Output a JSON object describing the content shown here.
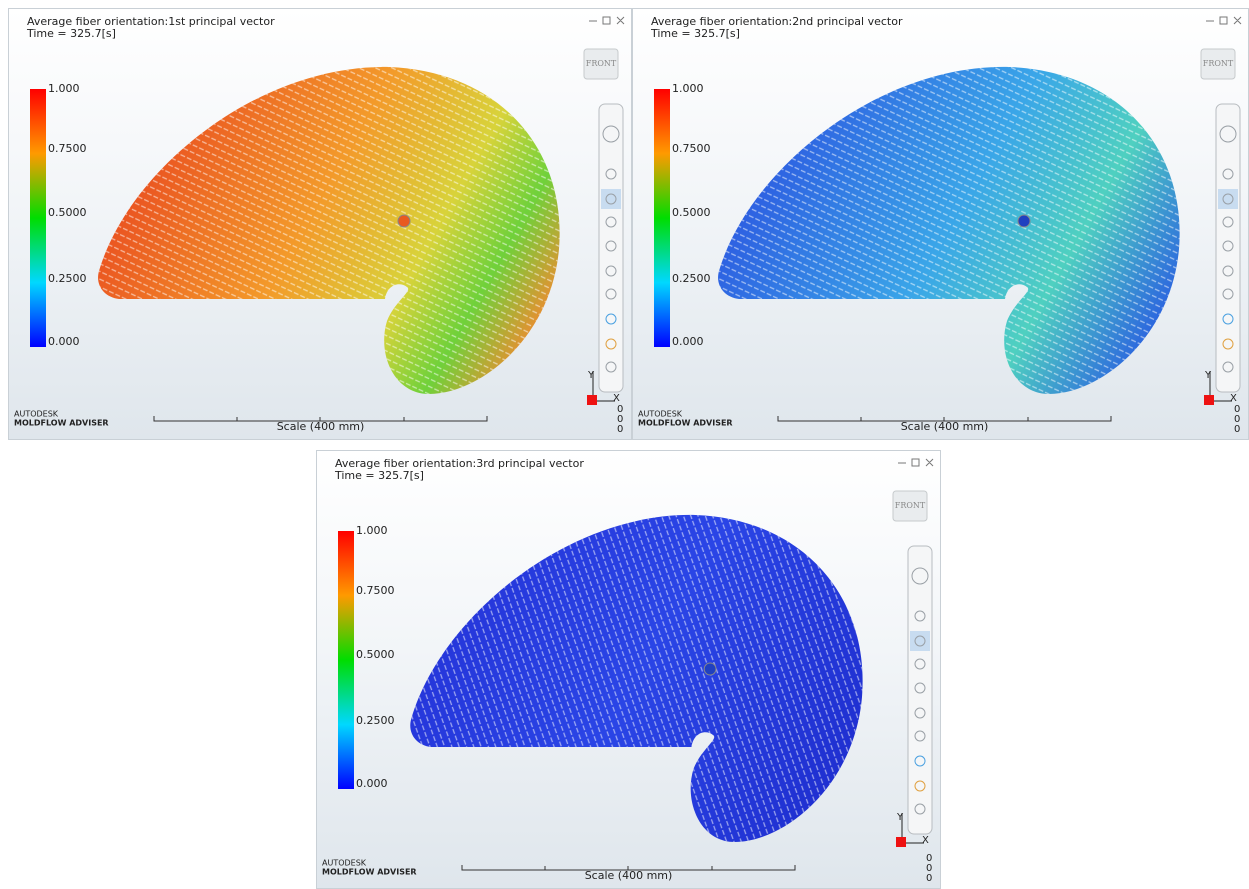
{
  "panels": [
    {
      "title": "Average fiber orientation:1st principal vector",
      "time": "Time = 325.7[s]",
      "legend": [
        "1.000",
        "0.7500",
        "0.5000",
        "0.2500",
        "0.000"
      ],
      "view_button": "FRONT",
      "brand": "AUTODESK",
      "product": "MOLDFLOW ADVISER",
      "scale": "Scale (400 mm)",
      "axes": {
        "y": "Y",
        "x": "X",
        "origin": [
          "0",
          "0",
          "0"
        ]
      }
    },
    {
      "title": "Average fiber orientation:2nd principal vector",
      "time": "Time = 325.7[s]",
      "legend": [
        "1.000",
        "0.7500",
        "0.5000",
        "0.2500",
        "0.000"
      ],
      "view_button": "FRONT",
      "brand": "AUTODESK",
      "product": "MOLDFLOW ADVISER",
      "scale": "Scale (400 mm)",
      "axes": {
        "y": "Y",
        "x": "X",
        "origin": [
          "0",
          "0",
          "0"
        ]
      }
    },
    {
      "title": "Average fiber orientation:3rd principal vector",
      "time": "Time = 325.7[s]",
      "legend": [
        "1.000",
        "0.7500",
        "0.5000",
        "0.2500",
        "0.000"
      ],
      "view_button": "FRONT",
      "brand": "AUTODESK",
      "product": "MOLDFLOW ADVISER",
      "scale": "Scale (400 mm)",
      "axes": {
        "y": "Y",
        "x": "X",
        "origin": [
          "0",
          "0",
          "0"
        ]
      }
    }
  ]
}
